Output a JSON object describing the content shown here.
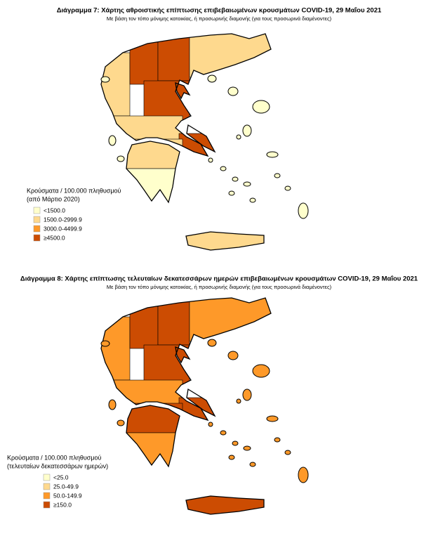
{
  "maps": [
    {
      "title": "Διάγραμμα 7: Χάρτης αθροιστικής επίπτωσης επιβεβαιωμένων κρουσμάτων COVID-19, 29 Μαΐου 2021",
      "subtitle": "Με βάση τον τόπο μόνιμης κατοικίας, ή προσωρινής διαμονής (για τους προσωρινά διαμένοντες)",
      "legend": {
        "title": [
          "Κρούσματα / 100.000 πληθυσμού",
          "(από Μάρτιο 2020)"
        ],
        "items": [
          {
            "label": "<1500.0",
            "color": "#ffffcc"
          },
          {
            "label": "1500.0-2999.9",
            "color": "#fed98e"
          },
          {
            "label": "3000.0-4499.9",
            "color": "#fe9929"
          },
          {
            "label": "≥4500.0",
            "color": "#cc4c02"
          }
        ]
      }
    },
    {
      "title": "Διάγραμμα 8: Χάρτης επίπτωσης τελευταίων δεκατεσσάρων ημερών επιβεβαιωμένων κρουσμάτων COVID-19, 29 Μαΐου 2021",
      "subtitle": "Με βάση τον τόπο μόνιμης κατοικίας, ή προσωρινής διαμονής (για τους προσωρινά διαμένοντες)",
      "legend": {
        "title": [
          "Κρούσματα / 100.000 πληθυσμού",
          "(τελευταίων δεκατεσσάρων ημερών)"
        ],
        "items": [
          {
            "label": "<25.0",
            "color": "#ffffcc"
          },
          {
            "label": "25.0-49.9",
            "color": "#fed98e"
          },
          {
            "label": "50.0-149.9",
            "color": "#fe9929"
          },
          {
            "label": "≥150.0",
            "color": "#cc4c02"
          }
        ]
      }
    }
  ]
}
